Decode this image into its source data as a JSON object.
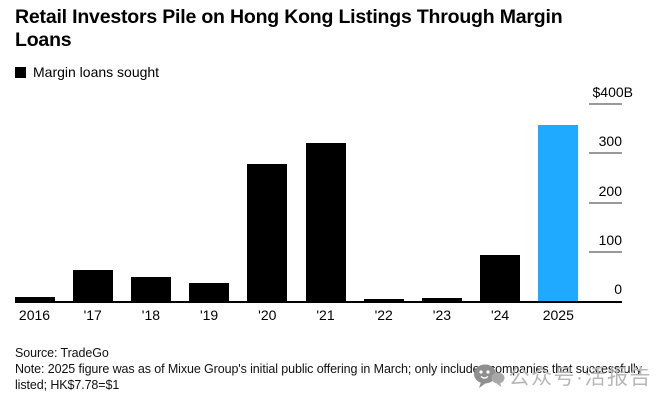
{
  "title": "Retail Investors Pile on Hong Kong Listings Through Margin Loans",
  "legend": {
    "label": "Margin loans sought",
    "swatch_color": "#000000"
  },
  "chart_data": {
    "type": "bar",
    "title": "Retail Investors Pile on Hong Kong Listings Through Margin Loans",
    "series_name": "Margin loans sought",
    "categories": [
      "2016",
      "'17",
      "'18",
      "'19",
      "'20",
      "'21",
      "'22",
      "'23",
      "'24",
      "2025"
    ],
    "values": [
      9,
      63,
      48,
      37,
      278,
      320,
      5,
      7,
      93,
      357
    ],
    "bar_color": "#000000",
    "highlight": {
      "index": 9,
      "category": "2025",
      "color": "#1fa9ff"
    },
    "ylim": [
      0,
      400
    ],
    "y_ticks": [
      0,
      100,
      200,
      300,
      400
    ],
    "y_tick_labels": [
      "0",
      "100",
      "200",
      "300",
      "$400B"
    ],
    "y_top_label": "$400B",
    "axis_side": "right",
    "grid": false,
    "xlabel": "",
    "ylabel": ""
  },
  "footer": {
    "source": "Source: TradeGo",
    "note": "Note: 2025 figure was as of Mixue Group's initial public offering in March; only includes companies that successfully listed; HK$7.78=$1"
  },
  "watermark": {
    "icon": "wechat-icon",
    "text": "公众号·活报告"
  }
}
